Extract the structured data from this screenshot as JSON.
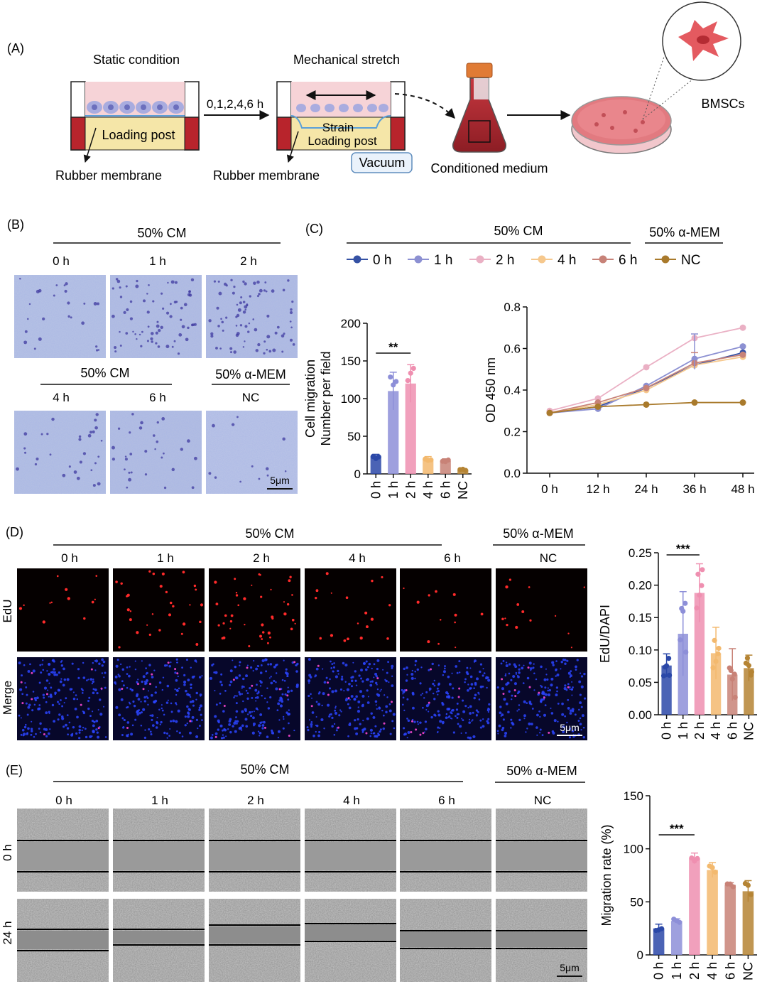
{
  "panelA": {
    "label": "(A)",
    "static_title": "Static condition",
    "stretch_title": "Mechanical stretch",
    "time_label": "0,1,2,4,6 h",
    "loading_post": "Loading post",
    "strain": "Strain",
    "rubber_membrane": "Rubber membrane",
    "vacuum": "Vacuum",
    "conditioned_medium": "Conditioned medium",
    "bmscs": "BMSCs"
  },
  "panelB": {
    "label": "(B)",
    "group_title": "50% CM",
    "group_title_2": "50% CM",
    "control_title": "50% α-MEM",
    "times": [
      "0 h",
      "1 h",
      "2 h",
      "4 h",
      "6 h",
      "NC"
    ],
    "scale": "5μm"
  },
  "panelC": {
    "label": "(C)",
    "group_title": "50% CM",
    "control_title": "50% α-MEM",
    "legend": [
      "0 h",
      "1 h",
      "2 h",
      "4 h",
      "6 h",
      "NC"
    ],
    "significance": "**"
  },
  "panelD": {
    "label": "(D)",
    "group_title": "50% CM",
    "control_title": "50% α-MEM",
    "times": [
      "0 h",
      "1 h",
      "2 h",
      "4 h",
      "6 h",
      "NC"
    ],
    "rows": [
      "EdU",
      "Merge"
    ],
    "scale": "5μm",
    "significance": "***"
  },
  "panelE": {
    "label": "(E)",
    "group_title": "50% CM",
    "control_title": "50% α-MEM",
    "times": [
      "0 h",
      "1 h",
      "2 h",
      "4 h",
      "6 h",
      "NC"
    ],
    "rows": [
      "0 h",
      "24 h"
    ],
    "scale": "5μm",
    "significance": "***"
  },
  "colors": {
    "c0h": "#3551a4",
    "c1h": "#8c90d2",
    "c2h": "#eab0c4",
    "c4h": "#f6c88d",
    "c6h": "#c78278",
    "cNC": "#a97a2c",
    "bar0h": "#2b48a8",
    "bar1h": "#8d8fd8",
    "bar2h": "#ef8fb0",
    "bar4h": "#f3b96e",
    "bar6h": "#c88277",
    "barNC": "#b58434"
  },
  "chart_data": [
    {
      "id": "migration_bar",
      "type": "bar",
      "categories": [
        "0 h",
        "1 h",
        "2 h",
        "4 h",
        "6 h",
        "NC"
      ],
      "values": [
        23,
        110,
        120,
        20,
        17,
        5
      ],
      "errors": [
        3,
        25,
        25,
        3,
        3,
        2
      ],
      "ylabel": "Cell migration\nNumber per field",
      "ylim": [
        0,
        200
      ],
      "yticks": [
        0,
        50,
        100,
        150,
        200
      ]
    },
    {
      "id": "od_line",
      "type": "line",
      "x": [
        "0 h",
        "12 h",
        "24 h",
        "36 h",
        "48 h"
      ],
      "ylabel": "OD 450 nm",
      "ylim": [
        0.0,
        0.8
      ],
      "yticks": [
        "0.0",
        "0.2",
        "0.4",
        "0.6",
        "0.8"
      ],
      "series": [
        {
          "name": "0 h",
          "values": [
            0.29,
            0.32,
            0.41,
            0.52,
            0.58
          ]
        },
        {
          "name": "1 h",
          "values": [
            0.29,
            0.31,
            0.42,
            0.55,
            0.61
          ]
        },
        {
          "name": "2 h",
          "values": [
            0.3,
            0.36,
            0.51,
            0.65,
            0.7
          ]
        },
        {
          "name": "4 h",
          "values": [
            0.29,
            0.33,
            0.4,
            0.52,
            0.56
          ]
        },
        {
          "name": "6 h",
          "values": [
            0.29,
            0.34,
            0.41,
            0.53,
            0.57
          ]
        },
        {
          "name": "NC",
          "values": [
            0.29,
            0.32,
            0.33,
            0.34,
            0.34
          ]
        }
      ]
    },
    {
      "id": "edu_bar",
      "type": "bar",
      "categories": [
        "0 h",
        "1 h",
        "2 h",
        "4 h",
        "6 h",
        "NC"
      ],
      "values": [
        0.076,
        0.125,
        0.188,
        0.095,
        0.062,
        0.072
      ],
      "errors": [
        0.018,
        0.065,
        0.045,
        0.04,
        0.04,
        0.02
      ],
      "ylabel": "EdU/DAPI",
      "ylim": [
        0,
        0.25
      ],
      "yticks": [
        "0.00",
        "0.05",
        "0.10",
        "0.15",
        "0.20",
        "0.25"
      ]
    },
    {
      "id": "woundhealing_bar",
      "type": "bar",
      "categories": [
        "0 h",
        "1 h",
        "2 h",
        "4 h",
        "6 h",
        "NC"
      ],
      "values": [
        25,
        32,
        91,
        80,
        66,
        60
      ],
      "errors": [
        4,
        2,
        5,
        7,
        2,
        10
      ],
      "ylabel": "Migration rate (%)",
      "ylim": [
        0,
        150
      ],
      "yticks": [
        0,
        50,
        100,
        150
      ]
    }
  ]
}
